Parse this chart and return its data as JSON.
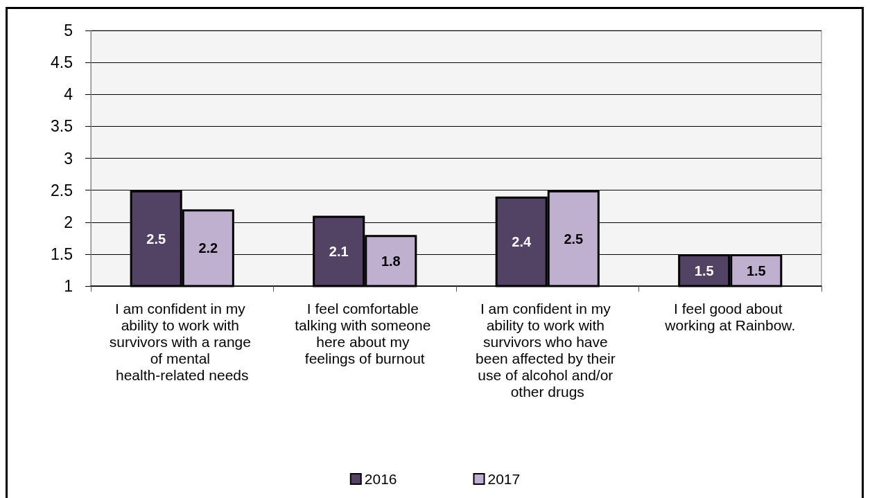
{
  "chart_data": {
    "type": "bar",
    "categories": [
      "I am confident in my ability to work with survivors with a range of mental health-related needs",
      "I feel comfortable talking with someone here about my feelings of burnout",
      "I am confident in my ability to work with survivors who have been affected by their use of alcohol and/or other drugs",
      "I feel good about working at Rainbow."
    ],
    "series": [
      {
        "name": "2016",
        "color": "#524264",
        "values": [
          2.5,
          2.1,
          2.4,
          1.5
        ]
      },
      {
        "name": "2017",
        "color": "#c0b0d0",
        "values": [
          2.2,
          1.8,
          2.5,
          1.5
        ]
      }
    ],
    "ylim": [
      1,
      5
    ],
    "yticks": [
      1,
      1.5,
      2,
      2.5,
      3,
      3.5,
      4,
      4.5,
      5
    ],
    "grid": "y",
    "legend": "bottom",
    "data_labels": true
  }
}
